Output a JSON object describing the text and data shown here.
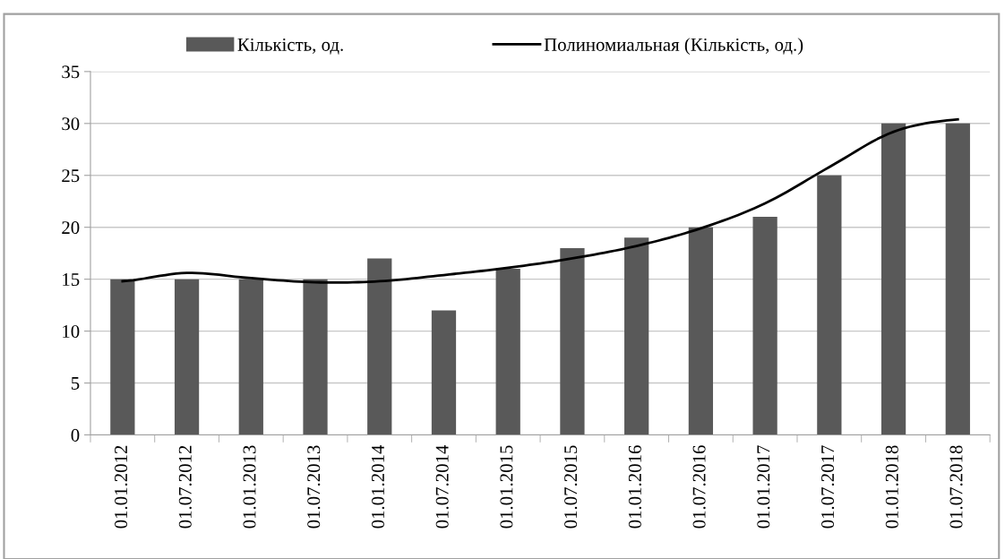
{
  "chart_data": {
    "type": "bar",
    "categories": [
      "01.01.2012",
      "01.07.2012",
      "01.01.2013",
      "01.07.2013",
      "01.01.2014",
      "01.07.2014",
      "01.01.2015",
      "01.07.2015",
      "01.01.2016",
      "01.07.2016",
      "01.01.2017",
      "01.07.2017",
      "01.01.2018",
      "01.07.2018"
    ],
    "series": [
      {
        "name": "Кількість, од.",
        "color": "#595959",
        "values": [
          15,
          15,
          15,
          15,
          17,
          12,
          16,
          18,
          19,
          20,
          21,
          25,
          30,
          30
        ]
      },
      {
        "name": "Полиномиальная (Кількість, од.)",
        "type": "line",
        "color": "#000000",
        "values": [
          14.8,
          15.6,
          15.1,
          14.7,
          14.8,
          15.4,
          16.1,
          17.0,
          18.2,
          19.9,
          22.3,
          25.8,
          29.2,
          30.4
        ]
      }
    ],
    "ylim": [
      0,
      35
    ],
    "yticks": [
      0,
      5,
      10,
      15,
      20,
      25,
      30,
      35
    ],
    "grid": "y",
    "legend": "top",
    "marker": "none",
    "line_style": "solid"
  }
}
